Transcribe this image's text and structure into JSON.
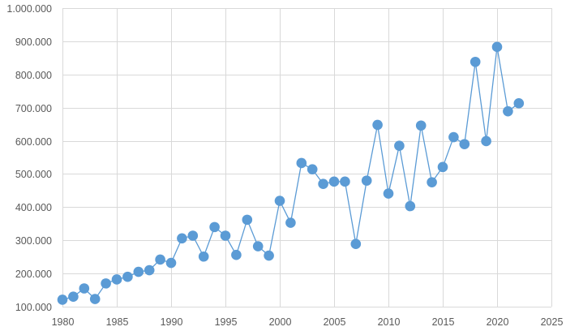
{
  "chart_data": {
    "type": "scatter",
    "title": "",
    "xlabel": "",
    "ylabel": "",
    "xlim": [
      1980,
      2025
    ],
    "ylim": [
      100000,
      1000000
    ],
    "x_ticks": [
      1980,
      1985,
      1990,
      1995,
      2000,
      2005,
      2010,
      2015,
      2020,
      2025
    ],
    "y_ticks": [
      100000,
      200000,
      300000,
      400000,
      500000,
      600000,
      700000,
      800000,
      900000,
      1000000
    ],
    "x_tick_labels": [
      "1980",
      "1985",
      "1990",
      "1995",
      "2000",
      "2005",
      "2010",
      "2015",
      "2020",
      "2025"
    ],
    "y_tick_labels": [
      "100.000",
      "200.000",
      "300.000",
      "400.000",
      "500.000",
      "600.000",
      "700.000",
      "800.000",
      "900.000",
      "1.000.000"
    ],
    "grid": true,
    "legend": "none",
    "colors": {
      "marker": "#5b9bd5",
      "line": "#5b9bd5",
      "grid": "#d9d9d9",
      "tick_text": "#595959"
    },
    "series": [
      {
        "marker": "circle",
        "connected": true,
        "x": [
          1980,
          1981,
          1982,
          1983,
          1984,
          1985,
          1986,
          1987,
          1988,
          1989,
          1990,
          1991,
          1992,
          1993,
          1994,
          1995,
          1996,
          1997,
          1998,
          1999,
          2000,
          2001,
          2002,
          2003,
          2004,
          2005,
          2006,
          2007,
          2008,
          2009,
          2010,
          2011,
          2012,
          2013,
          2014,
          2015,
          2016,
          2017,
          2018,
          2019,
          2020,
          2021,
          2022
        ],
        "values": [
          121000,
          130000,
          155000,
          123000,
          170000,
          182000,
          190000,
          205000,
          210000,
          242000,
          232000,
          306000,
          314000,
          251000,
          340000,
          314000,
          256000,
          362000,
          282000,
          254000,
          419000,
          353000,
          533000,
          514000,
          470000,
          477000,
          477000,
          289000,
          480000,
          648000,
          441000,
          585000,
          403000,
          646000,
          475000,
          521000,
          611000,
          590000,
          838000,
          599000,
          883000,
          689000,
          713000
        ]
      }
    ]
  }
}
